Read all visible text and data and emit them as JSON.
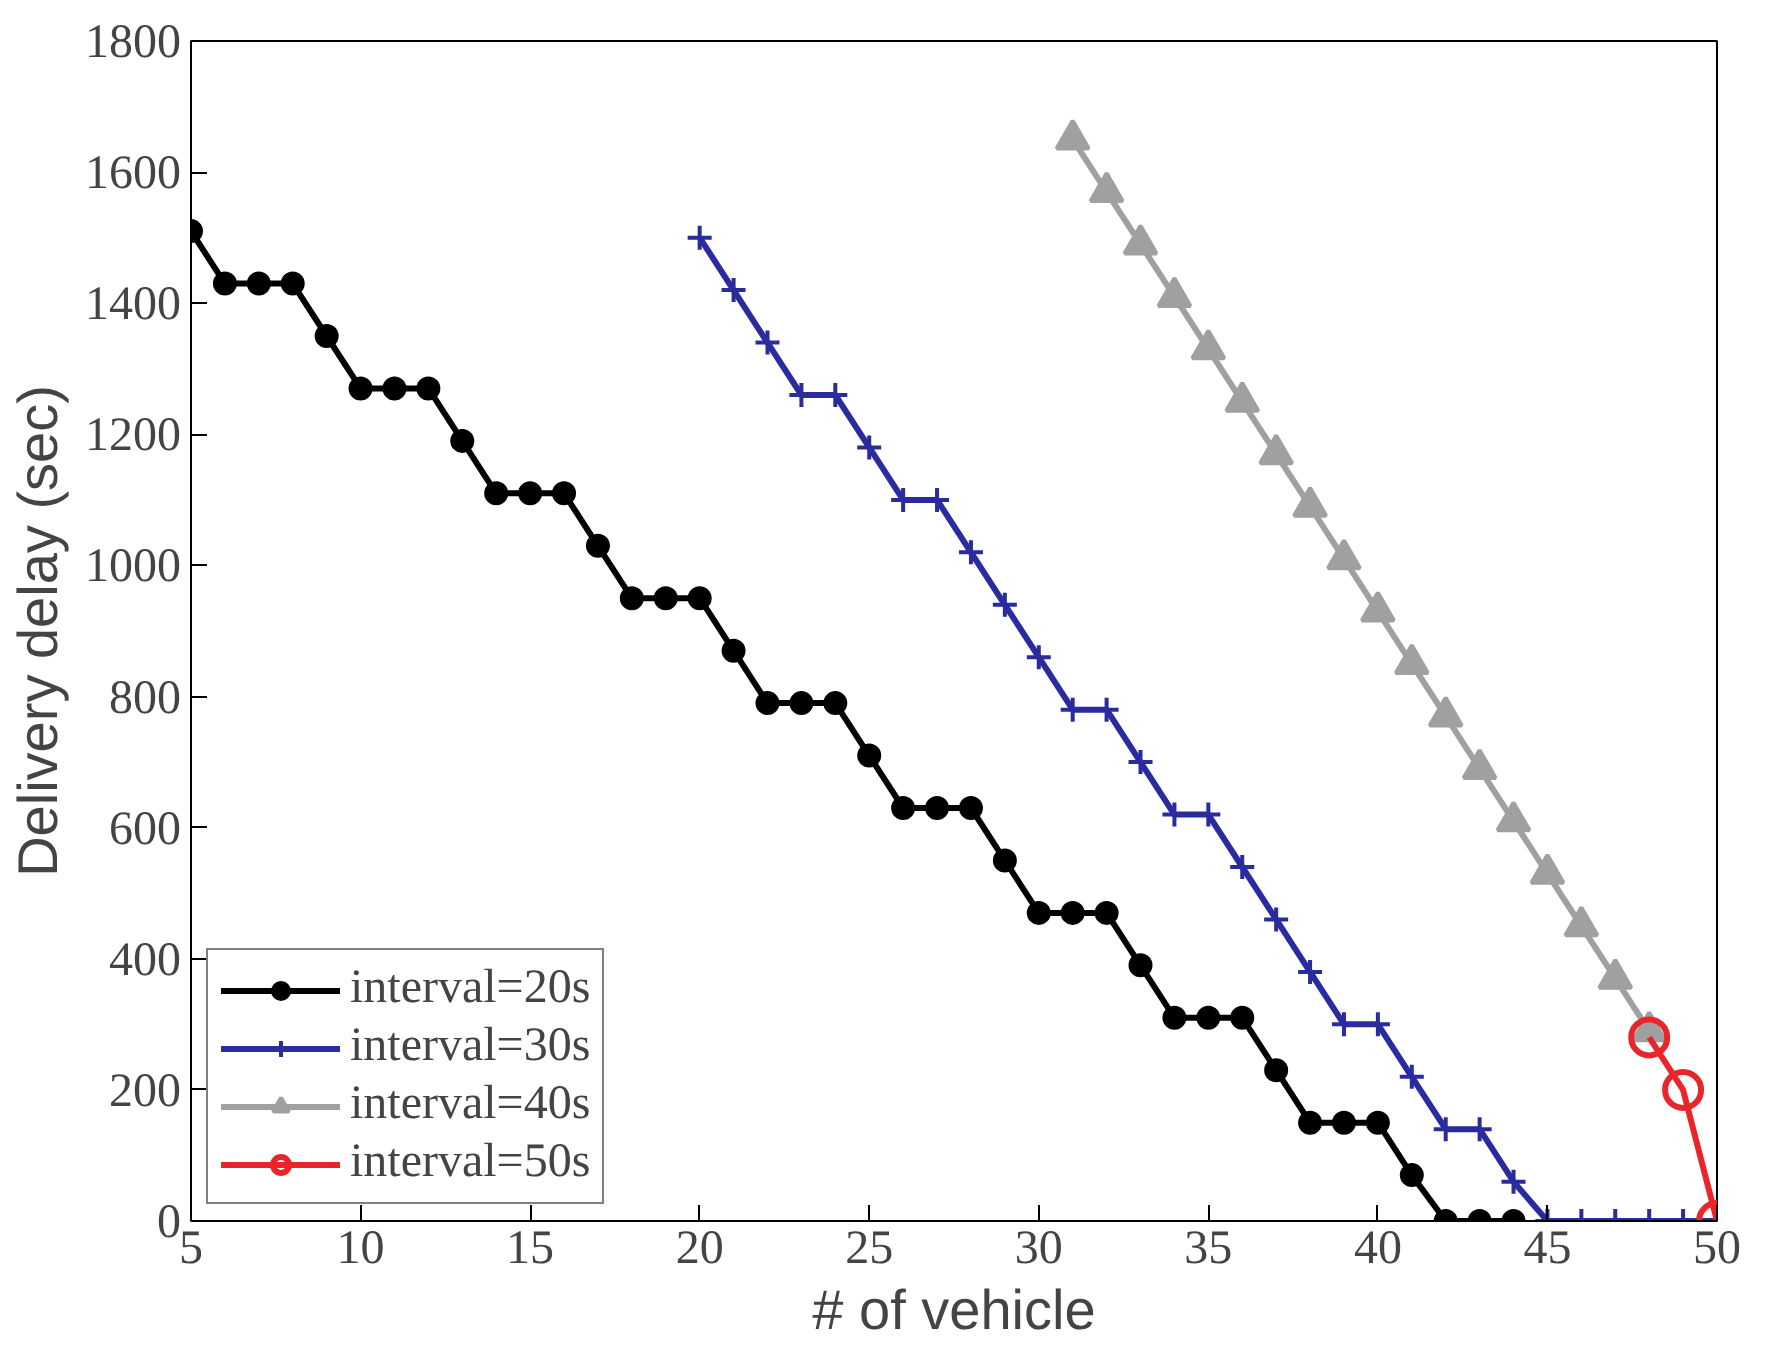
{
  "chart_data": {
    "type": "line",
    "xlabel": "# of vehicle",
    "ylabel": "Delivery delay (sec)",
    "xlim": [
      5,
      50
    ],
    "ylim": [
      0,
      1800
    ],
    "xticks": [
      5,
      10,
      15,
      20,
      25,
      30,
      35,
      40,
      45,
      50
    ],
    "yticks": [
      0,
      200,
      400,
      600,
      800,
      1000,
      1200,
      1400,
      1600,
      1800
    ],
    "grid": false,
    "legend": "bottom left",
    "series": [
      {
        "name": "interval=20s",
        "color": "#000000",
        "marker": "circle",
        "x": [
          5,
          6,
          7,
          8,
          9,
          10,
          11,
          12,
          13,
          14,
          15,
          16,
          17,
          18,
          19,
          20,
          21,
          22,
          23,
          24,
          25,
          26,
          27,
          28,
          29,
          30,
          31,
          32,
          33,
          34,
          35,
          36,
          37,
          38,
          39,
          40,
          41,
          42,
          43,
          44
        ],
        "values": [
          1510,
          1430,
          1430,
          1430,
          1350,
          1270,
          1270,
          1270,
          1190,
          1110,
          1110,
          1110,
          1030,
          950,
          950,
          950,
          870,
          790,
          790,
          790,
          710,
          630,
          630,
          630,
          550,
          470,
          470,
          470,
          390,
          310,
          310,
          310,
          230,
          150,
          150,
          150,
          70,
          0,
          0,
          0
        ]
      },
      {
        "name": "interval=30s",
        "color": "#2b2ba0",
        "marker": "cross",
        "x": [
          20,
          21,
          22,
          23,
          24,
          25,
          26,
          27,
          28,
          29,
          30,
          31,
          32,
          33,
          34,
          35,
          36,
          37,
          38,
          39,
          40,
          41,
          42,
          43,
          44,
          45,
          46,
          47,
          48,
          49,
          50
        ],
        "values": [
          1500,
          1420,
          1340,
          1260,
          1260,
          1180,
          1100,
          1100,
          1020,
          940,
          860,
          780,
          780,
          700,
          620,
          620,
          540,
          460,
          380,
          300,
          300,
          220,
          140,
          140,
          60,
          0,
          0,
          0,
          0,
          0,
          0
        ]
      },
      {
        "name": "interval=40s",
        "color": "#a0a0a0",
        "marker": "triangle",
        "x": [
          31,
          32,
          33,
          34,
          35,
          36,
          37,
          38,
          39,
          40,
          41,
          42,
          43,
          44,
          45,
          46,
          47,
          48
        ],
        "values": [
          1650,
          1570,
          1490,
          1410,
          1330,
          1250,
          1170,
          1090,
          1010,
          930,
          850,
          770,
          690,
          610,
          530,
          450,
          370,
          290
        ]
      },
      {
        "name": "interval=50s",
        "color": "#e8262a",
        "marker": "circle",
        "x": [
          48,
          49,
          50
        ],
        "values": [
          280,
          200,
          0
        ]
      }
    ]
  }
}
